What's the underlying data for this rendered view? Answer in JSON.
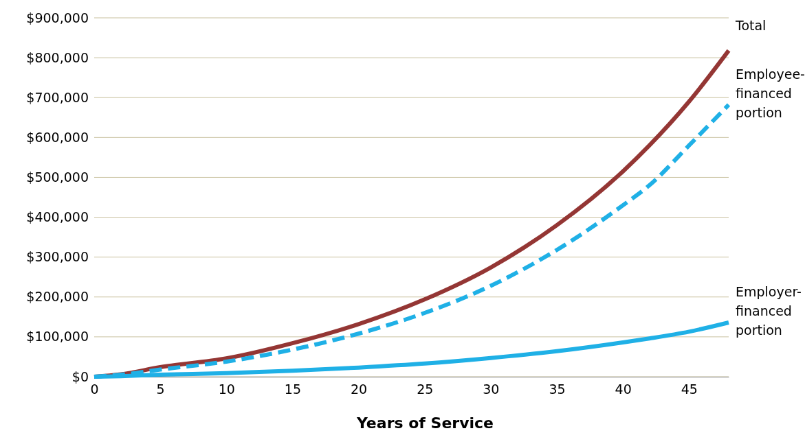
{
  "chart_data": {
    "type": "line",
    "xlabel": "Years of Service",
    "x": [
      0,
      2,
      5,
      10,
      15,
      20,
      25,
      30,
      35,
      40,
      42,
      45,
      48
    ],
    "series": [
      {
        "name": "Total",
        "color": "#943634",
        "line_style": "solid",
        "values": [
          0,
          6000,
          24000,
          46000,
          84000,
          132000,
          194000,
          274000,
          380000,
          515000,
          580000,
          690000,
          818000
        ]
      },
      {
        "name": "Employee-financed portion",
        "color": "#1fb0e6",
        "line_style": "dashed",
        "values": [
          0,
          5000,
          18000,
          38000,
          68000,
          108000,
          160000,
          228000,
          318000,
          430000,
          480000,
          580000,
          682000
        ]
      },
      {
        "name": "Employer-financed portion",
        "color": "#1fb0e6",
        "line_style": "solid",
        "values": [
          0,
          1500,
          5000,
          9000,
          15000,
          23000,
          33000,
          47000,
          64000,
          86000,
          96000,
          113000,
          136000
        ]
      }
    ],
    "xlim": [
      0,
      48
    ],
    "xticks": [
      0,
      5,
      10,
      15,
      20,
      25,
      30,
      35,
      40,
      45
    ],
    "ylim": [
      0,
      900000
    ],
    "yticks": [
      {
        "value": 0,
        "label": "$0"
      },
      {
        "value": 100000,
        "label": "$100,000"
      },
      {
        "value": 200000,
        "label": "$200,000"
      },
      {
        "value": 300000,
        "label": "$300,000"
      },
      {
        "value": 400000,
        "label": "$400,000"
      },
      {
        "value": 500000,
        "label": "$500,000"
      },
      {
        "value": 600000,
        "label": "$600,000"
      },
      {
        "value": 700000,
        "label": "$700,000"
      },
      {
        "value": 800000,
        "label": "$800,000"
      },
      {
        "value": 900000,
        "label": "$900,000"
      }
    ],
    "grid": "y",
    "legend": false,
    "marker": "none"
  }
}
